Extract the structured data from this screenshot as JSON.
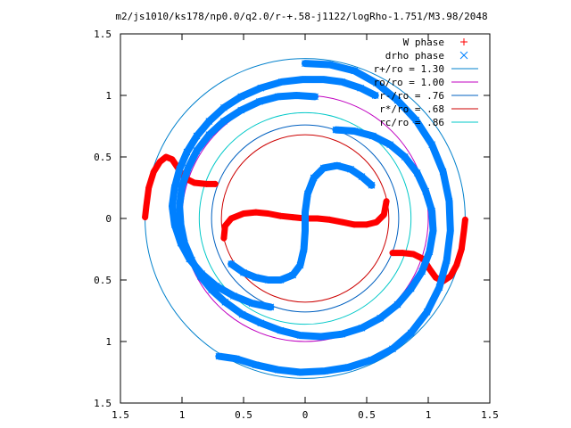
{
  "chart_data": {
    "type": "scatter",
    "title": "m2/js1010/ks178/np0.0/q2.0/r-+.58-j1122/logRho-1.751/M3.98/2048",
    "xlim": [
      -1.5,
      1.5
    ],
    "ylim": [
      -1.5,
      1.5
    ],
    "x_ticks": [
      -1.5,
      -1,
      -0.5,
      0,
      0.5,
      1,
      1.5
    ],
    "x_tick_labels": [
      "1.5",
      "1",
      "0.5",
      "0",
      "0.5",
      "1",
      "1.5"
    ],
    "y_ticks": [
      -1.5,
      -1,
      -0.5,
      0,
      0.5,
      1,
      1.5
    ],
    "y_tick_labels": [
      "1.5",
      "1",
      "0.5",
      "0",
      "0.5",
      "1",
      "1.5"
    ],
    "grid": false,
    "legend_position": "top-right",
    "legend": [
      {
        "label": "W phase",
        "kind": "point",
        "marker": "+",
        "color": "#ff0000"
      },
      {
        "label": "drho phase",
        "kind": "point",
        "marker": "x",
        "color": "#0080ff"
      },
      {
        "label": "r+/ro = 1.30",
        "kind": "line",
        "color": "#0080cc"
      },
      {
        "label": "ro/ro = 1.00",
        "kind": "line",
        "color": "#c000c0"
      },
      {
        "label": "r-/ro = .76",
        "kind": "line",
        "color": "#0060c0"
      },
      {
        "label": "r*/ro = .68",
        "kind": "line",
        "color": "#cc0000"
      },
      {
        "label": "rc/ro = .86",
        "kind": "line",
        "color": "#00c8c8"
      }
    ],
    "circles": [
      {
        "r": 1.3,
        "color": "#0080cc"
      },
      {
        "r": 1.0,
        "color": "#c000c0"
      },
      {
        "r": 0.76,
        "color": "#0060c0"
      },
      {
        "r": 0.68,
        "color": "#cc0000"
      },
      {
        "r": 0.86,
        "color": "#00c8c8"
      }
    ],
    "series": [
      {
        "name": "W phase",
        "color": "#ff0000",
        "marker": "+",
        "segments": [
          [
            [
              -0.66,
              -0.16
            ],
            [
              -0.65,
              -0.06
            ],
            [
              -0.6,
              0.0
            ],
            [
              -0.5,
              0.04
            ],
            [
              -0.4,
              0.05
            ],
            [
              -0.3,
              0.04
            ],
            [
              -0.2,
              0.02
            ],
            [
              -0.1,
              0.01
            ],
            [
              0.0,
              0.0
            ],
            [
              0.1,
              0.0
            ],
            [
              0.2,
              -0.01
            ],
            [
              0.3,
              -0.03
            ],
            [
              0.4,
              -0.05
            ],
            [
              0.5,
              -0.05
            ],
            [
              0.58,
              -0.03
            ],
            [
              0.64,
              0.03
            ],
            [
              0.66,
              0.14
            ]
          ],
          [
            [
              -1.3,
              0.01
            ],
            [
              -1.29,
              0.1
            ],
            [
              -1.27,
              0.25
            ],
            [
              -1.23,
              0.38
            ],
            [
              -1.18,
              0.46
            ],
            [
              -1.13,
              0.5
            ],
            [
              -1.08,
              0.48
            ],
            [
              -1.04,
              0.42
            ],
            [
              -0.98,
              0.33
            ],
            [
              -0.9,
              0.29
            ],
            [
              -0.8,
              0.28
            ],
            [
              -0.73,
              0.28
            ]
          ],
          [
            [
              1.3,
              -0.01
            ],
            [
              1.29,
              -0.1
            ],
            [
              1.27,
              -0.25
            ],
            [
              1.23,
              -0.38
            ],
            [
              1.18,
              -0.47
            ],
            [
              1.12,
              -0.51
            ],
            [
              1.06,
              -0.48
            ],
            [
              1.01,
              -0.41
            ],
            [
              0.96,
              -0.33
            ],
            [
              0.88,
              -0.29
            ],
            [
              0.79,
              -0.28
            ],
            [
              0.71,
              -0.28
            ]
          ]
        ]
      },
      {
        "name": "drho phase",
        "color": "#0080ff",
        "marker": "x",
        "segments": [
          [
            [
              -0.6,
              -0.37
            ],
            [
              -0.5,
              -0.44
            ],
            [
              -0.4,
              -0.48
            ],
            [
              -0.3,
              -0.5
            ],
            [
              -0.2,
              -0.5
            ],
            [
              -0.1,
              -0.46
            ],
            [
              -0.04,
              -0.38
            ],
            [
              -0.01,
              -0.25
            ],
            [
              0.0,
              -0.1
            ],
            [
              0.0,
              0.05
            ],
            [
              0.02,
              0.2
            ],
            [
              0.07,
              0.33
            ],
            [
              0.15,
              0.41
            ],
            [
              0.26,
              0.43
            ],
            [
              0.37,
              0.4
            ],
            [
              0.46,
              0.34
            ],
            [
              0.54,
              0.27
            ]
          ],
          [
            [
              0.25,
              0.72
            ],
            [
              0.4,
              0.71
            ],
            [
              0.55,
              0.67
            ],
            [
              0.69,
              0.6
            ],
            [
              0.81,
              0.5
            ],
            [
              0.91,
              0.37
            ],
            [
              0.98,
              0.22
            ],
            [
              1.03,
              0.06
            ],
            [
              1.04,
              -0.1
            ],
            [
              1.01,
              -0.27
            ],
            [
              0.95,
              -0.43
            ],
            [
              0.86,
              -0.57
            ],
            [
              0.75,
              -0.7
            ],
            [
              0.61,
              -0.81
            ],
            [
              0.46,
              -0.89
            ],
            [
              0.3,
              -0.94
            ],
            [
              0.13,
              -0.96
            ],
            [
              -0.04,
              -0.95
            ],
            [
              -0.2,
              -0.91
            ],
            [
              -0.36,
              -0.85
            ],
            [
              -0.51,
              -0.78
            ],
            [
              -0.65,
              -0.68
            ],
            [
              -0.76,
              -0.58
            ],
            [
              -0.85,
              -0.47
            ],
            [
              -0.92,
              -0.34
            ],
            [
              -0.98,
              -0.2
            ],
            [
              -1.01,
              -0.05
            ],
            [
              -1.02,
              0.1
            ],
            [
              -1.0,
              0.26
            ],
            [
              -0.95,
              0.41
            ],
            [
              -0.88,
              0.55
            ],
            [
              -0.78,
              0.68
            ],
            [
              -0.66,
              0.79
            ],
            [
              -0.52,
              0.88
            ],
            [
              -0.37,
              0.95
            ],
            [
              -0.22,
              0.99
            ],
            [
              -0.07,
              1.0
            ],
            [
              0.08,
              0.99
            ]
          ],
          [
            [
              0.0,
              1.26
            ],
            [
              0.2,
              1.25
            ],
            [
              0.4,
              1.2
            ],
            [
              0.58,
              1.1
            ],
            [
              0.75,
              0.96
            ],
            [
              0.9,
              0.8
            ],
            [
              1.03,
              0.6
            ],
            [
              1.12,
              0.38
            ],
            [
              1.17,
              0.14
            ],
            [
              1.18,
              -0.1
            ],
            [
              1.15,
              -0.34
            ],
            [
              1.09,
              -0.56
            ],
            [
              0.99,
              -0.76
            ],
            [
              0.86,
              -0.93
            ],
            [
              0.71,
              -1.06
            ],
            [
              0.54,
              -1.15
            ],
            [
              0.35,
              -1.21
            ],
            [
              0.16,
              -1.24
            ],
            [
              -0.04,
              -1.25
            ],
            [
              -0.22,
              -1.23
            ],
            [
              -0.4,
              -1.19
            ],
            [
              -0.56,
              -1.14
            ],
            [
              -0.7,
              -1.12
            ]
          ],
          [
            [
              -0.28,
              -0.72
            ],
            [
              -0.43,
              -0.69
            ],
            [
              -0.58,
              -0.63
            ],
            [
              -0.72,
              -0.55
            ],
            [
              -0.84,
              -0.45
            ],
            [
              -0.94,
              -0.33
            ],
            [
              -1.01,
              -0.2
            ],
            [
              -1.06,
              -0.05
            ],
            [
              -1.08,
              0.1
            ],
            [
              -1.06,
              0.25
            ],
            [
              -1.02,
              0.4
            ],
            [
              -0.96,
              0.54
            ],
            [
              -0.88,
              0.67
            ],
            [
              -0.78,
              0.79
            ],
            [
              -0.66,
              0.9
            ],
            [
              -0.52,
              0.99
            ],
            [
              -0.36,
              1.06
            ],
            [
              -0.19,
              1.11
            ],
            [
              -0.02,
              1.13
            ],
            [
              0.15,
              1.13
            ],
            [
              0.3,
              1.11
            ],
            [
              0.45,
              1.06
            ],
            [
              0.57,
              1.0
            ]
          ]
        ]
      }
    ]
  }
}
